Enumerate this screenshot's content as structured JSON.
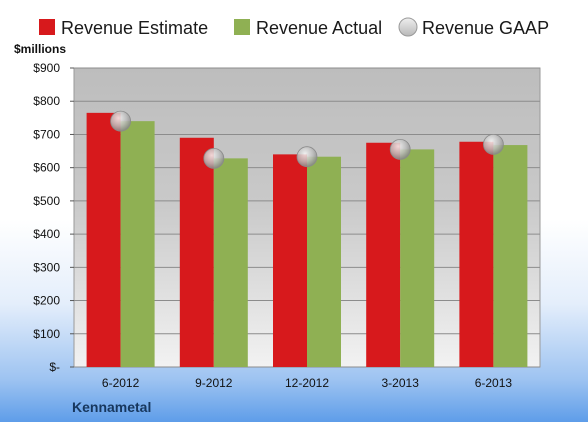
{
  "chart_data": {
    "type": "bar",
    "categories": [
      "6-2012",
      "9-2012",
      "12-2012",
      "3-2013",
      "6-2013"
    ],
    "series": [
      {
        "name": "Revenue Estimate",
        "kind": "bar",
        "color": "#d7191c",
        "values": [
          765,
          690,
          640,
          675,
          678
        ]
      },
      {
        "name": "Revenue Actual",
        "kind": "bar",
        "color": "#8fb053",
        "values": [
          740,
          628,
          633,
          655,
          668
        ]
      },
      {
        "name": "Revenue GAAP",
        "kind": "marker",
        "color": "#c0c0c0",
        "values": [
          740,
          628,
          633,
          655,
          670
        ]
      }
    ],
    "ylabel": "$millions",
    "ylim": [
      0,
      900
    ],
    "yticks": [
      0,
      100,
      200,
      300,
      400,
      500,
      600,
      700,
      800,
      900
    ],
    "ytick_labels": [
      "$-",
      "$100",
      "$200",
      "$300",
      "$400",
      "$500",
      "$600",
      "$700",
      "$800",
      "$900"
    ],
    "grid": true,
    "legend": "top",
    "company": "Kennametal"
  }
}
